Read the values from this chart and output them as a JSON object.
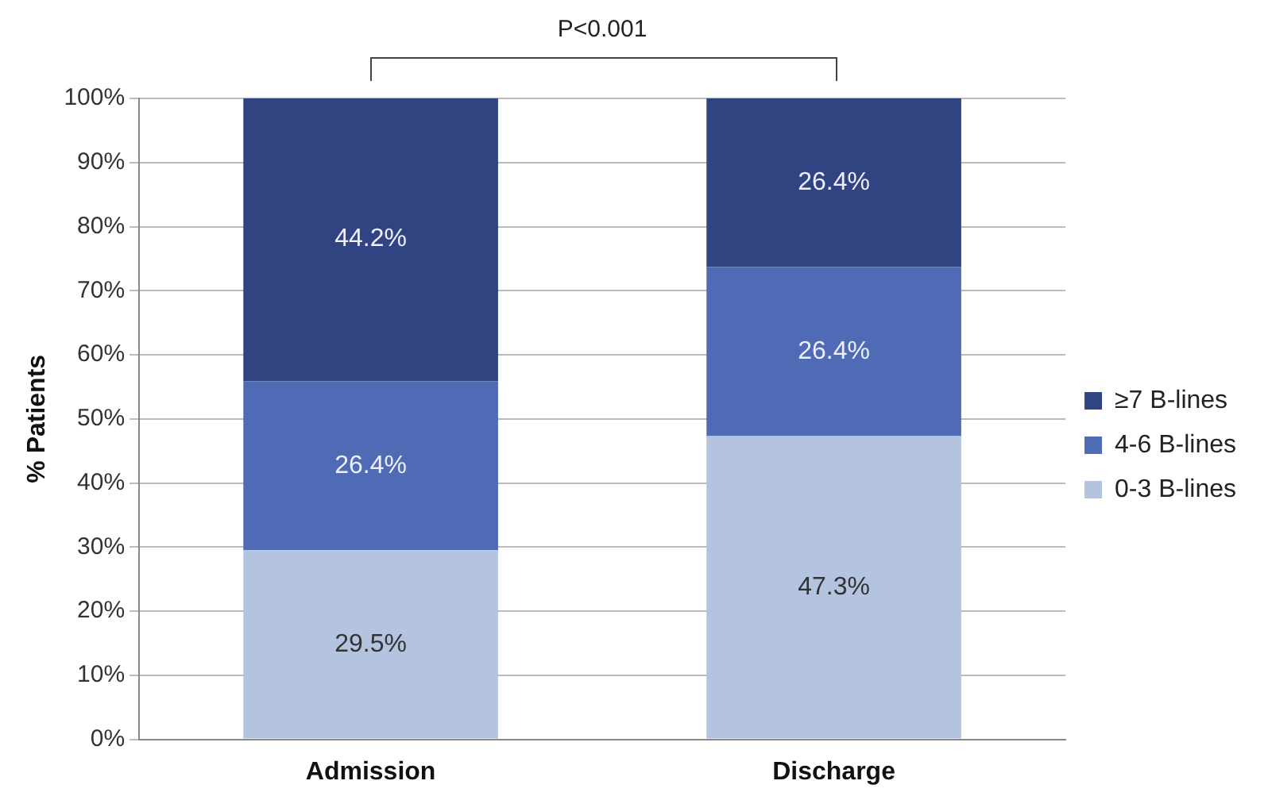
{
  "chart_data": {
    "type": "bar",
    "stacked": true,
    "ylabel": "% Patients",
    "categories": [
      "Admission",
      "Discharge"
    ],
    "series": [
      {
        "name": "0-3 B-lines",
        "color": "#b4c3e0",
        "values": [
          29.5,
          47.3
        ],
        "value_labels": [
          "29.5%",
          "47.3%"
        ]
      },
      {
        "name": "4-6 B-lines",
        "color": "#4f6bb5",
        "values": [
          26.4,
          26.4
        ],
        "value_labels": [
          "26.4%",
          "26.4%"
        ]
      },
      {
        "name": "≥7 B-lines",
        "color": "#2f4480",
        "values": [
          44.2,
          26.4
        ],
        "value_labels": [
          "44.2%",
          "26.4%"
        ]
      }
    ],
    "ylim": [
      0,
      100
    ],
    "yticks": [
      {
        "value": 0,
        "label": "0%"
      },
      {
        "value": 10,
        "label": "10%"
      },
      {
        "value": 20,
        "label": "20%"
      },
      {
        "value": 30,
        "label": "30%"
      },
      {
        "value": 40,
        "label": "40%"
      },
      {
        "value": 50,
        "label": "50%"
      },
      {
        "value": 60,
        "label": "60%"
      },
      {
        "value": 70,
        "label": "70%"
      },
      {
        "value": 80,
        "label": "80%"
      },
      {
        "value": 90,
        "label": "90%"
      },
      {
        "value": 100,
        "label": "100%"
      }
    ],
    "grid": "y",
    "legend": "right",
    "annotations": [
      "P<0.001"
    ]
  }
}
